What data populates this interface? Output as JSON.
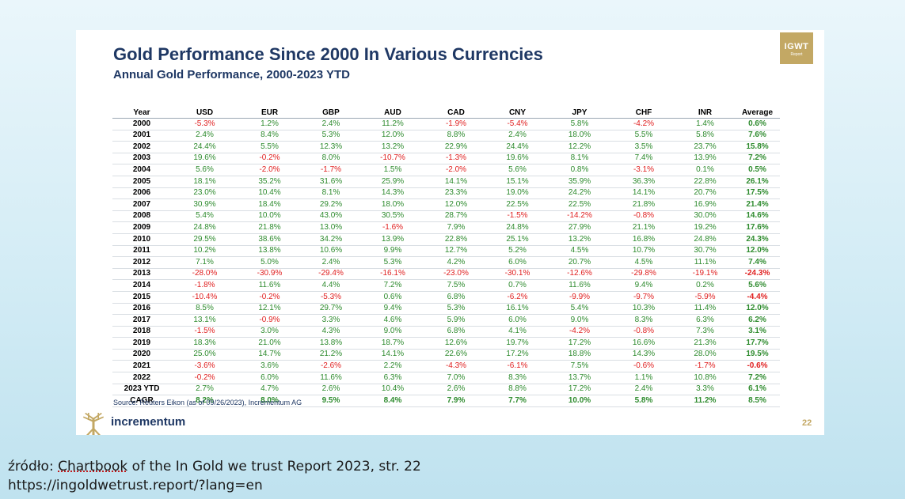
{
  "slide": {
    "title": "Gold Performance Since 2000 In Various Currencies",
    "subtitle": "Annual Gold Performance, 2000-2023 YTD",
    "badge": {
      "top": "IGWT",
      "bottom": "Report"
    },
    "source_note": "Source: Reuters Eikon (as of 09/26/2023), Incrementum AG",
    "logo_text": "incrementum",
    "page_number": "22",
    "colors": {
      "positive": "#2e8b2e",
      "negative": "#e02020",
      "title": "#1f3864",
      "gold": "#c3a864"
    }
  },
  "table": {
    "headers": [
      "Year",
      "USD",
      "EUR",
      "GBP",
      "AUD",
      "CAD",
      "CNY",
      "JPY",
      "CHF",
      "INR",
      "Average"
    ],
    "rows": [
      [
        "2000",
        "-5.3%",
        "1.2%",
        "2.4%",
        "11.2%",
        "-1.9%",
        "-5.4%",
        "5.8%",
        "-4.2%",
        "1.4%",
        "0.6%"
      ],
      [
        "2001",
        "2.4%",
        "8.4%",
        "5.3%",
        "12.0%",
        "8.8%",
        "2.4%",
        "18.0%",
        "5.5%",
        "5.8%",
        "7.6%"
      ],
      [
        "2002",
        "24.4%",
        "5.5%",
        "12.3%",
        "13.2%",
        "22.9%",
        "24.4%",
        "12.2%",
        "3.5%",
        "23.7%",
        "15.8%"
      ],
      [
        "2003",
        "19.6%",
        "-0.2%",
        "8.0%",
        "-10.7%",
        "-1.3%",
        "19.6%",
        "8.1%",
        "7.4%",
        "13.9%",
        "7.2%"
      ],
      [
        "2004",
        "5.6%",
        "-2.0%",
        "-1.7%",
        "1.5%",
        "-2.0%",
        "5.6%",
        "0.8%",
        "-3.1%",
        "0.1%",
        "0.5%"
      ],
      [
        "2005",
        "18.1%",
        "35.2%",
        "31.6%",
        "25.9%",
        "14.1%",
        "15.1%",
        "35.9%",
        "36.3%",
        "22.8%",
        "26.1%"
      ],
      [
        "2006",
        "23.0%",
        "10.4%",
        "8.1%",
        "14.3%",
        "23.3%",
        "19.0%",
        "24.2%",
        "14.1%",
        "20.7%",
        "17.5%"
      ],
      [
        "2007",
        "30.9%",
        "18.4%",
        "29.2%",
        "18.0%",
        "12.0%",
        "22.5%",
        "22.5%",
        "21.8%",
        "16.9%",
        "21.4%"
      ],
      [
        "2008",
        "5.4%",
        "10.0%",
        "43.0%",
        "30.5%",
        "28.7%",
        "-1.5%",
        "-14.2%",
        "-0.8%",
        "30.0%",
        "14.6%"
      ],
      [
        "2009",
        "24.8%",
        "21.8%",
        "13.0%",
        "-1.6%",
        "7.9%",
        "24.8%",
        "27.9%",
        "21.1%",
        "19.2%",
        "17.6%"
      ],
      [
        "2010",
        "29.5%",
        "38.6%",
        "34.2%",
        "13.9%",
        "22.8%",
        "25.1%",
        "13.2%",
        "16.8%",
        "24.8%",
        "24.3%"
      ],
      [
        "2011",
        "10.2%",
        "13.8%",
        "10.6%",
        "9.9%",
        "12.7%",
        "5.2%",
        "4.5%",
        "10.7%",
        "30.7%",
        "12.0%"
      ],
      [
        "2012",
        "7.1%",
        "5.0%",
        "2.4%",
        "5.3%",
        "4.2%",
        "6.0%",
        "20.7%",
        "4.5%",
        "11.1%",
        "7.4%"
      ],
      [
        "2013",
        "-28.0%",
        "-30.9%",
        "-29.4%",
        "-16.1%",
        "-23.0%",
        "-30.1%",
        "-12.6%",
        "-29.8%",
        "-19.1%",
        "-24.3%"
      ],
      [
        "2014",
        "-1.8%",
        "11.6%",
        "4.4%",
        "7.2%",
        "7.5%",
        "0.7%",
        "11.6%",
        "9.4%",
        "0.2%",
        "5.6%"
      ],
      [
        "2015",
        "-10.4%",
        "-0.2%",
        "-5.3%",
        "0.6%",
        "6.8%",
        "-6.2%",
        "-9.9%",
        "-9.7%",
        "-5.9%",
        "-4.4%"
      ],
      [
        "2016",
        "8.5%",
        "12.1%",
        "29.7%",
        "9.4%",
        "5.3%",
        "16.1%",
        "5.4%",
        "10.3%",
        "11.4%",
        "12.0%"
      ],
      [
        "2017",
        "13.1%",
        "-0.9%",
        "3.3%",
        "4.6%",
        "5.9%",
        "6.0%",
        "9.0%",
        "8.3%",
        "6.3%",
        "6.2%"
      ],
      [
        "2018",
        "-1.5%",
        "3.0%",
        "4.3%",
        "9.0%",
        "6.8%",
        "4.1%",
        "-4.2%",
        "-0.8%",
        "7.3%",
        "3.1%"
      ],
      [
        "2019",
        "18.3%",
        "21.0%",
        "13.8%",
        "18.7%",
        "12.6%",
        "19.7%",
        "17.2%",
        "16.6%",
        "21.3%",
        "17.7%"
      ],
      [
        "2020",
        "25.0%",
        "14.7%",
        "21.2%",
        "14.1%",
        "22.6%",
        "17.2%",
        "18.8%",
        "14.3%",
        "28.0%",
        "19.5%"
      ],
      [
        "2021",
        "-3.6%",
        "3.6%",
        "-2.6%",
        "2.2%",
        "-4.3%",
        "-6.1%",
        "7.5%",
        "-0.6%",
        "-1.7%",
        "-0.6%"
      ],
      [
        "2022",
        "-0.2%",
        "6.0%",
        "11.6%",
        "6.3%",
        "7.0%",
        "8.3%",
        "13.7%",
        "1.1%",
        "10.8%",
        "7.2%"
      ],
      [
        "2023 YTD",
        "2.7%",
        "4.7%",
        "2.6%",
        "10.4%",
        "2.6%",
        "8.8%",
        "17.2%",
        "2.4%",
        "3.3%",
        "6.1%"
      ]
    ],
    "cagr": [
      "CAGR",
      "8.2%",
      "8.0%",
      "9.5%",
      "8.4%",
      "7.9%",
      "7.7%",
      "10.0%",
      "5.8%",
      "11.2%",
      "8.5%"
    ]
  },
  "caption": {
    "source_prefix": "źródło: ",
    "link_text": "Chartbook",
    "source_rest": " of the In Gold we trust Report 2023,  str. 22",
    "url": "https://ingoldwetrust.report/?lang=en"
  }
}
